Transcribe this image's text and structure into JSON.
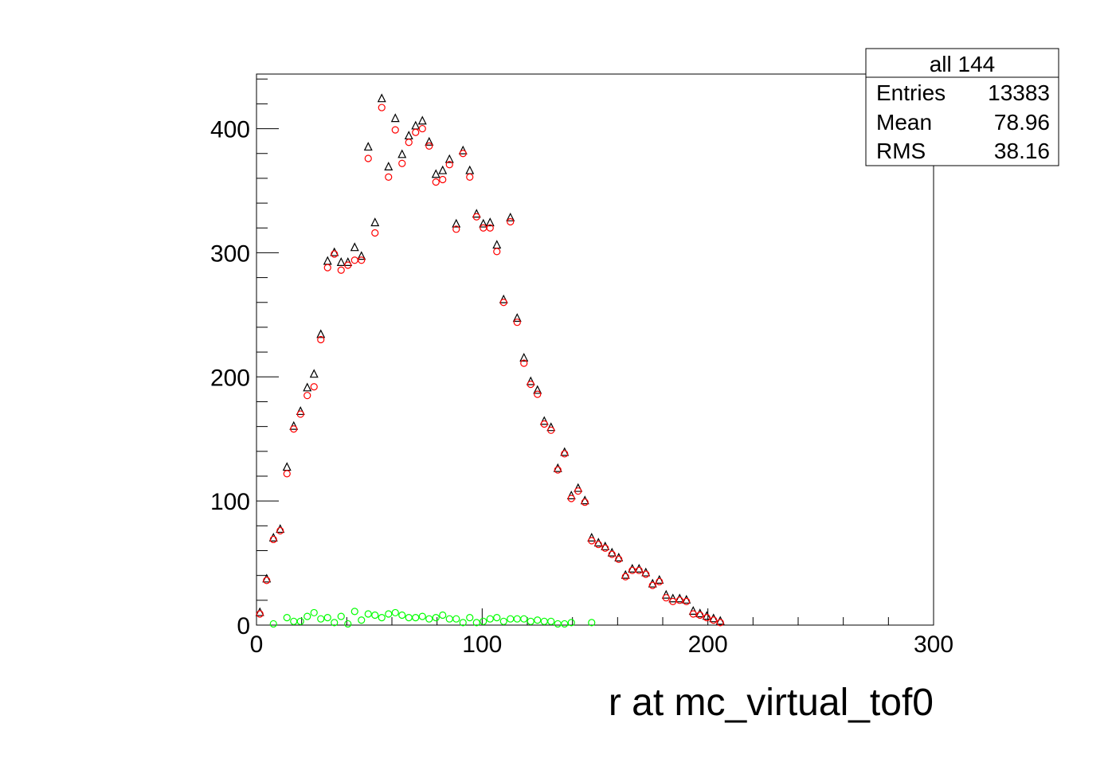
{
  "chart_data": {
    "type": "scatter",
    "xlabel": "r at mc_virtual_tof0",
    "ylabel": "",
    "xlim": [
      0,
      300
    ],
    "ylim": [
      0,
      444
    ],
    "x_ticks": [
      0,
      100,
      200,
      300
    ],
    "y_ticks": [
      0,
      100,
      200,
      300,
      400
    ],
    "grid": false,
    "stats_box": {
      "title": "all 144",
      "rows": [
        {
          "label": "Entries",
          "value": "13383"
        },
        {
          "label": "Mean",
          "value": "78.96"
        },
        {
          "label": "RMS",
          "value": "38.16"
        }
      ],
      "placement": "top-right"
    },
    "series": [
      {
        "marker": "open-triangle",
        "color": "#000000",
        "x": [
          1.5,
          4.5,
          7.5,
          10.5,
          13.5,
          16.5,
          19.5,
          22.5,
          25.5,
          28.5,
          31.5,
          34.5,
          37.5,
          40.5,
          43.5,
          46.5,
          49.5,
          52.5,
          55.5,
          58.5,
          61.5,
          64.5,
          67.5,
          70.5,
          73.5,
          76.5,
          79.5,
          82.5,
          85.5,
          88.5,
          91.5,
          94.5,
          97.5,
          100.5,
          103.5,
          106.5,
          109.5,
          112.5,
          115.5,
          118.5,
          121.5,
          124.5,
          127.5,
          130.5,
          133.5,
          136.5,
          139.5,
          142.5,
          145.5,
          148.5,
          151.5,
          154.5,
          157.5,
          160.5,
          163.5,
          166.5,
          169.5,
          172.5,
          175.5,
          178.5,
          181.5,
          184.5,
          187.5,
          190.5,
          193.5,
          196.5,
          199.5,
          202.5,
          205.5
        ],
        "values": [
          10,
          37,
          70,
          77,
          127,
          160,
          172,
          191,
          202,
          234,
          293,
          300,
          292,
          292,
          304,
          297,
          385,
          324,
          424,
          369,
          408,
          379,
          394,
          402,
          406,
          389,
          363,
          366,
          375,
          323,
          382,
          366,
          331,
          323,
          324,
          306,
          262,
          328,
          247,
          215,
          196,
          189,
          164,
          159,
          126,
          139,
          104,
          110,
          100,
          70,
          66,
          63,
          58,
          54,
          40,
          45,
          45,
          42,
          33,
          36,
          24,
          21,
          21,
          20,
          11,
          9,
          7,
          5,
          3
        ]
      },
      {
        "marker": "open-circle",
        "color": "#ff0000",
        "x": [
          1.5,
          4.5,
          7.5,
          10.5,
          13.5,
          16.5,
          19.5,
          22.5,
          25.5,
          28.5,
          31.5,
          34.5,
          37.5,
          40.5,
          43.5,
          46.5,
          49.5,
          52.5,
          55.5,
          58.5,
          61.5,
          64.5,
          67.5,
          70.5,
          73.5,
          76.5,
          79.5,
          82.5,
          85.5,
          88.5,
          91.5,
          94.5,
          97.5,
          100.5,
          103.5,
          106.5,
          109.5,
          112.5,
          115.5,
          118.5,
          121.5,
          124.5,
          127.5,
          130.5,
          133.5,
          136.5,
          139.5,
          142.5,
          145.5,
          148.5,
          151.5,
          154.5,
          157.5,
          160.5,
          163.5,
          166.5,
          169.5,
          172.5,
          175.5,
          178.5,
          181.5,
          184.5,
          187.5,
          190.5,
          193.5,
          196.5,
          199.5,
          202.5,
          205.5
        ],
        "values": [
          9,
          36,
          69,
          76,
          122,
          158,
          170,
          185,
          192,
          230,
          288,
          299,
          286,
          290,
          294,
          294,
          376,
          316,
          417,
          361,
          399,
          372,
          389,
          397,
          400,
          386,
          357,
          359,
          371,
          319,
          380,
          361,
          329,
          320,
          320,
          301,
          260,
          325,
          244,
          211,
          194,
          186,
          162,
          157,
          125,
          138,
          102,
          108,
          99,
          68,
          65,
          62,
          57,
          53,
          39,
          44,
          44,
          41,
          32,
          35,
          22,
          19,
          20,
          19,
          9,
          8,
          6,
          4,
          2
        ]
      },
      {
        "marker": "open-circle",
        "color": "#00ff00",
        "x": [
          7.5,
          13.5,
          16.5,
          19.5,
          22.5,
          25.5,
          28.5,
          31.5,
          34.5,
          37.5,
          40.5,
          43.5,
          46.5,
          49.5,
          52.5,
          55.5,
          58.5,
          61.5,
          64.5,
          67.5,
          70.5,
          73.5,
          76.5,
          79.5,
          82.5,
          85.5,
          88.5,
          91.5,
          94.5,
          97.5,
          100.5,
          103.5,
          106.5,
          109.5,
          112.5,
          115.5,
          118.5,
          121.5,
          124.5,
          127.5,
          130.5,
          133.5,
          136.5,
          139.5,
          148.5
        ],
        "values": [
          1,
          6,
          3,
          3,
          7,
          10,
          5,
          6,
          2,
          7,
          1,
          11,
          4,
          9,
          8,
          6,
          9,
          10,
          8,
          6,
          6,
          7,
          5,
          6,
          8,
          5,
          5,
          2,
          6,
          2,
          3,
          5,
          6,
          3,
          5,
          5,
          5,
          3,
          4,
          3,
          3,
          1,
          1,
          2,
          2
        ]
      }
    ]
  }
}
